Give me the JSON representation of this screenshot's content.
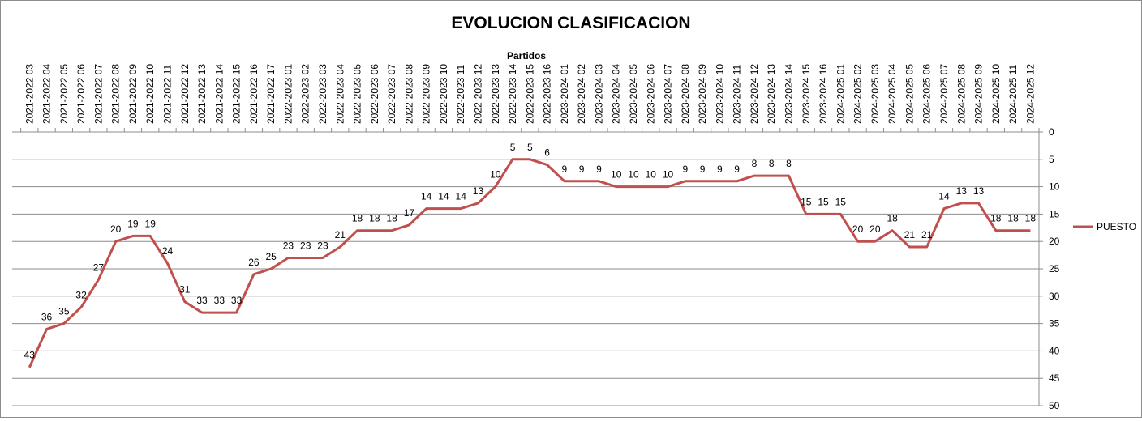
{
  "chart_data": {
    "type": "line",
    "title": "EVOLUCION CLASIFICACION",
    "xlabel": "Partidos",
    "ylabel": "",
    "y_inverted": true,
    "ylim": [
      0,
      50
    ],
    "y_ticks": [
      0,
      5,
      10,
      15,
      20,
      25,
      30,
      35,
      40,
      45,
      50
    ],
    "x_axis_position": "top",
    "y_axis_position": "right",
    "grid": true,
    "legend": "right",
    "categories": [
      "2021-2022 03",
      "2021-2022 04",
      "2021-2022 05",
      "2021-2022 06",
      "2021-2022 07",
      "2021-2022 08",
      "2021-2022 09",
      "2021-2022 10",
      "2021-2022 11",
      "2021-2022 12",
      "2021-2022 13",
      "2021-2022 14",
      "2021-2022 15",
      "2021-2022 16",
      "2021-2022 17",
      "2022-2023 01",
      "2022-2023 02",
      "2022-2023 03",
      "2022-2023 04",
      "2022-2023 05",
      "2022-2023 06",
      "2022-2023 07",
      "2022-2023 08",
      "2022-2023 09",
      "2022-2023 10",
      "2022-2023 11",
      "2022-2023 12",
      "2022-2023 13",
      "2022-2023 14",
      "2022-2023 15",
      "2022-2023 16",
      "2023-2024 01",
      "2023-2024 02",
      "2023-2024 03",
      "2023-2024 04",
      "2023-2024 05",
      "2023-2024 06",
      "2023-2024 07",
      "2023-2024 08",
      "2023-2024 09",
      "2023-2024 10",
      "2023-2024 11",
      "2023-2024 12",
      "2023-2024 13",
      "2023-2024 14",
      "2023-2024 15",
      "2023-2024 16",
      "2024-2025 01",
      "2024-2025 02",
      "2024-2025 03",
      "2024-2025 04",
      "2024-2025 05",
      "2024-2025 06",
      "2024-2025 07",
      "2024-2025 08",
      "2024-2025 09",
      "2024-2025 10",
      "2024-2025 11",
      "2024-2025 12"
    ],
    "series": [
      {
        "name": "PUESTO",
        "color": "#c0504d",
        "values": [
          43,
          36,
          35,
          32,
          27,
          20,
          19,
          19,
          24,
          31,
          33,
          33,
          33,
          26,
          25,
          23,
          23,
          23,
          21,
          18,
          18,
          18,
          17,
          14,
          14,
          14,
          13,
          10,
          5,
          5,
          6,
          9,
          9,
          9,
          10,
          10,
          10,
          10,
          9,
          9,
          9,
          9,
          8,
          8,
          8,
          15,
          15,
          15,
          20,
          20,
          18,
          21,
          21,
          14,
          13,
          13,
          18,
          18,
          18
        ]
      }
    ]
  }
}
